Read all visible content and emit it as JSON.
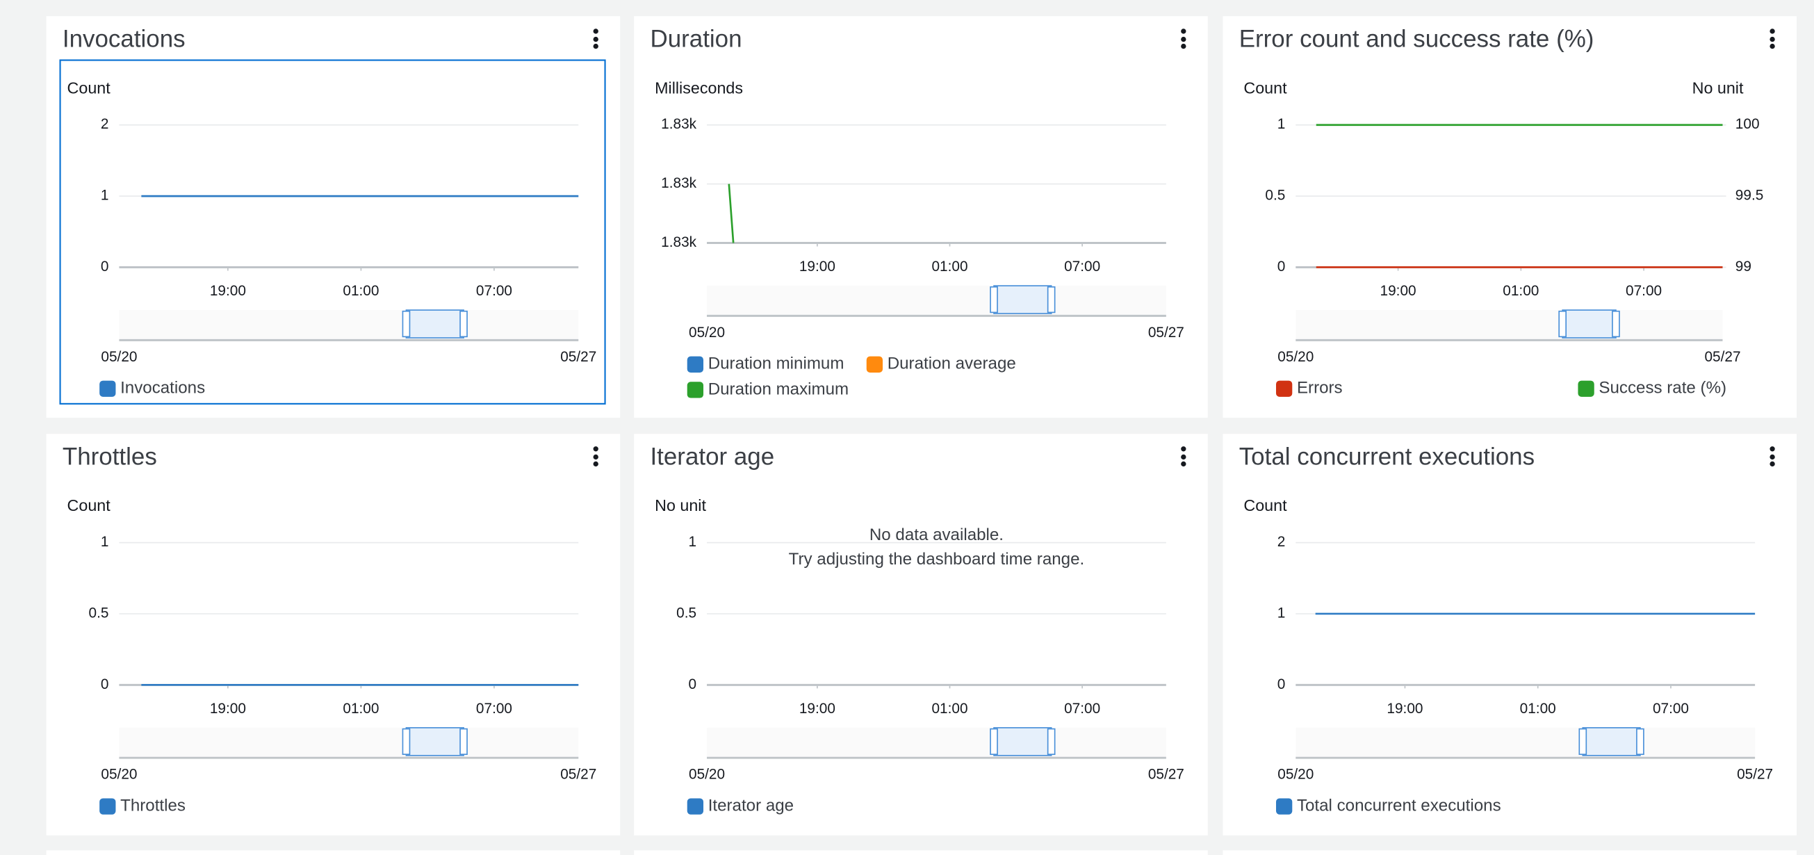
{
  "chart_data": [
    {
      "type": "line",
      "title": "Invocations",
      "ylabel": "Count",
      "xlim": [
        14.1,
        34.8
      ],
      "xticks": [
        {
          "value": 19,
          "label": "19:00"
        },
        {
          "value": 25,
          "label": "01:00"
        },
        {
          "value": 31,
          "label": "07:00"
        }
      ],
      "ylim": [
        0,
        2
      ],
      "yticks": [
        0,
        1,
        2
      ],
      "grid": true,
      "range_labels": [
        "05/20",
        "05/27"
      ],
      "series": [
        {
          "name": "Invocations",
          "color": "#2e7bc4",
          "x": [
            15.1,
            34.8
          ],
          "values": [
            1,
            1
          ]
        }
      ]
    },
    {
      "type": "line",
      "title": "Duration",
      "ylabel": "Milliseconds",
      "xlim": [
        14.0,
        34.8
      ],
      "xticks": [
        {
          "value": 19,
          "label": "19:00"
        },
        {
          "value": 25,
          "label": "01:00"
        },
        {
          "value": 31,
          "label": "07:00"
        }
      ],
      "ylim": [
        1828,
        1830
      ],
      "yticks": [
        {
          "value": 1828,
          "label": "1.83k"
        },
        {
          "value": 1829,
          "label": "1.83k"
        },
        {
          "value": 1830,
          "label": "1.83k"
        }
      ],
      "grid": true,
      "range_labels": [
        "05/20",
        "05/27"
      ],
      "series": [
        {
          "name": "Duration minimum",
          "color": "#2e7bc4",
          "x": [],
          "values": []
        },
        {
          "name": "Duration average",
          "color": "#ff8a0e",
          "x": [],
          "values": []
        },
        {
          "name": "Duration maximum",
          "color": "#2ca02c",
          "x": [
            15.0,
            15.2
          ],
          "values": [
            1829,
            1828
          ]
        }
      ]
    },
    {
      "type": "line",
      "title": "Error count and success rate (%)",
      "ylabel": "Count",
      "y2label": "No unit",
      "xlim": [
        14.0,
        34.85
      ],
      "xticks": [
        {
          "value": 19,
          "label": "19:00"
        },
        {
          "value": 25,
          "label": "01:00"
        },
        {
          "value": 31,
          "label": "07:00"
        }
      ],
      "ylim": [
        0,
        1
      ],
      "yticks": [
        0,
        0.5,
        1
      ],
      "y2lim": [
        99,
        100
      ],
      "y2ticks": [
        99,
        99.5,
        100
      ],
      "grid": true,
      "range_labels": [
        "05/20",
        "05/27"
      ],
      "series": [
        {
          "name": "Errors",
          "color": "#d13212",
          "x": [
            15.0,
            34.85
          ],
          "values": [
            0,
            0
          ]
        },
        {
          "name": "Success rate (%)",
          "color": "#2ca02c",
          "axis": "y2",
          "x": [
            15.0,
            34.85
          ],
          "values": [
            100,
            100
          ]
        }
      ]
    },
    {
      "type": "line",
      "title": "Throttles",
      "ylabel": "Count",
      "xlim": [
        14.1,
        34.8
      ],
      "xticks": [
        {
          "value": 19,
          "label": "19:00"
        },
        {
          "value": 25,
          "label": "01:00"
        },
        {
          "value": 31,
          "label": "07:00"
        }
      ],
      "ylim": [
        0,
        1
      ],
      "yticks": [
        0,
        0.5,
        1
      ],
      "grid": true,
      "range_labels": [
        "05/20",
        "05/27"
      ],
      "series": [
        {
          "name": "Throttles",
          "color": "#2e7bc4",
          "x": [
            15.1,
            34.8
          ],
          "values": [
            0,
            0
          ]
        }
      ]
    },
    {
      "type": "line",
      "title": "Iterator age",
      "ylabel": "No unit",
      "xlim": [
        14.0,
        34.8
      ],
      "xticks": [
        {
          "value": 19,
          "label": "19:00"
        },
        {
          "value": 25,
          "label": "01:00"
        },
        {
          "value": 31,
          "label": "07:00"
        }
      ],
      "ylim": [
        0,
        1
      ],
      "yticks": [
        0,
        0.5,
        1
      ],
      "grid": true,
      "range_labels": [
        "05/20",
        "05/27"
      ],
      "annotations": [
        "No data available.",
        "Try adjusting the dashboard time range."
      ],
      "series": [
        {
          "name": "Iterator age",
          "color": "#2e7bc4",
          "x": [],
          "values": []
        }
      ]
    },
    {
      "type": "line",
      "title": "Total concurrent executions",
      "ylabel": "Count",
      "xlim": [
        14.07,
        34.8
      ],
      "xticks": [
        {
          "value": 19,
          "label": "19:00"
        },
        {
          "value": 25,
          "label": "01:00"
        },
        {
          "value": 31,
          "label": "07:00"
        }
      ],
      "ylim": [
        0,
        2
      ],
      "yticks": [
        0,
        1,
        2
      ],
      "grid": true,
      "range_labels": [
        "05/20",
        "05/27"
      ],
      "series": [
        {
          "name": "Total concurrent executions",
          "color": "#2e7bc4",
          "x": [
            14.96,
            34.8
          ],
          "values": [
            1,
            1
          ]
        }
      ]
    }
  ]
}
